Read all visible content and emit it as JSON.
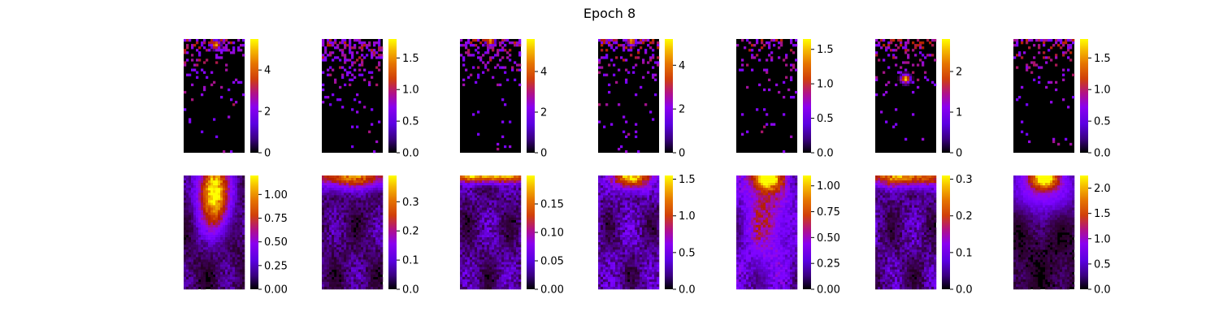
{
  "title": "Epoch 8",
  "colormap": "gnuplot",
  "chart_data": [
    {
      "type": "heatmap",
      "row": 1,
      "col": 1,
      "grid": "off",
      "cbar_range": [
        0,
        5.5
      ],
      "cbar_ticks": [
        {
          "v": 0,
          "t": "0"
        },
        {
          "v": 2,
          "t": "2"
        },
        {
          "v": 4,
          "t": "4"
        }
      ],
      "pattern": "sparse",
      "seed": 11,
      "hotspots": [
        {
          "x": 0.53,
          "y": 0.05,
          "s": 0.9
        }
      ],
      "density": 0.45
    },
    {
      "type": "heatmap",
      "row": 1,
      "col": 2,
      "grid": "off",
      "cbar_range": [
        0,
        1.8
      ],
      "cbar_ticks": [
        {
          "v": 0,
          "t": "0.0"
        },
        {
          "v": 0.5,
          "t": "0.5"
        },
        {
          "v": 1,
          "t": "1.0"
        },
        {
          "v": 1.5,
          "t": "1.5"
        }
      ],
      "pattern": "sparse",
      "seed": 23,
      "hotspots": [],
      "density": 0.7
    },
    {
      "type": "heatmap",
      "row": 1,
      "col": 3,
      "grid": "off",
      "cbar_range": [
        0,
        5.6
      ],
      "cbar_ticks": [
        {
          "v": 0,
          "t": "0"
        },
        {
          "v": 2,
          "t": "2"
        },
        {
          "v": 4,
          "t": "4"
        }
      ],
      "pattern": "sparse",
      "seed": 37,
      "hotspots": [
        {
          "x": 0.5,
          "y": 0.02,
          "s": 0.9
        }
      ],
      "density": 0.5
    },
    {
      "type": "heatmap",
      "row": 1,
      "col": 4,
      "grid": "off",
      "cbar_range": [
        0,
        5.2
      ],
      "cbar_ticks": [
        {
          "v": 0,
          "t": "0"
        },
        {
          "v": 2,
          "t": "2"
        },
        {
          "v": 4,
          "t": "4"
        }
      ],
      "pattern": "sparse",
      "seed": 41,
      "hotspots": [
        {
          "x": 0.55,
          "y": 0.02,
          "s": 0.9
        }
      ],
      "density": 0.5
    },
    {
      "type": "heatmap",
      "row": 1,
      "col": 5,
      "grid": "off",
      "cbar_range": [
        0,
        1.65
      ],
      "cbar_ticks": [
        {
          "v": 0,
          "t": "0.0"
        },
        {
          "v": 0.5,
          "t": "0.5"
        },
        {
          "v": 1,
          "t": "1.0"
        },
        {
          "v": 1.5,
          "t": "1.5"
        }
      ],
      "pattern": "sparse",
      "seed": 53,
      "hotspots": [],
      "density": 0.25
    },
    {
      "type": "heatmap",
      "row": 1,
      "col": 6,
      "grid": "off",
      "cbar_range": [
        0,
        2.8
      ],
      "cbar_ticks": [
        {
          "v": 0,
          "t": "0"
        },
        {
          "v": 1,
          "t": "1"
        },
        {
          "v": 2,
          "t": "2"
        }
      ],
      "pattern": "sparse",
      "seed": 67,
      "hotspots": [
        {
          "x": 0.5,
          "y": 0.35,
          "s": 1.0
        }
      ],
      "density": 0.45
    },
    {
      "type": "heatmap",
      "row": 1,
      "col": 7,
      "grid": "off",
      "cbar_range": [
        0,
        1.8
      ],
      "cbar_ticks": [
        {
          "v": 0,
          "t": "0.0"
        },
        {
          "v": 0.5,
          "t": "0.5"
        },
        {
          "v": 1,
          "t": "1.0"
        },
        {
          "v": 1.5,
          "t": "1.5"
        }
      ],
      "pattern": "sparse",
      "seed": 79,
      "hotspots": [],
      "density": 0.45
    },
    {
      "type": "heatmap",
      "row": 2,
      "col": 1,
      "grid": "off",
      "cbar_range": [
        0,
        1.2
      ],
      "cbar_ticks": [
        {
          "v": 0,
          "t": "0.00"
        },
        {
          "v": 0.25,
          "t": "0.25"
        },
        {
          "v": 0.5,
          "t": "0.50"
        },
        {
          "v": 0.75,
          "t": "0.75"
        },
        {
          "v": 1,
          "t": "1.00"
        }
      ],
      "pattern": "smooth",
      "seed": 83,
      "hotspots": [
        {
          "x": 0.5,
          "y": 0.15,
          "sx": 0.16,
          "sy": 0.2,
          "s": 1.0
        }
      ],
      "bg": 0.1
    },
    {
      "type": "heatmap",
      "row": 2,
      "col": 2,
      "grid": "off",
      "cbar_range": [
        0,
        0.39
      ],
      "cbar_ticks": [
        {
          "v": 0,
          "t": "0.0"
        },
        {
          "v": 0.1,
          "t": "0.1"
        },
        {
          "v": 0.2,
          "t": "0.2"
        },
        {
          "v": 0.3,
          "t": "0.3"
        }
      ],
      "pattern": "smooth",
      "seed": 97,
      "hotspots": [
        {
          "x": 0.5,
          "y": 0.0,
          "sx": 0.45,
          "sy": 0.07,
          "s": 0.7
        }
      ],
      "bg": 0.12
    },
    {
      "type": "heatmap",
      "row": 2,
      "col": 3,
      "grid": "off",
      "cbar_range": [
        0,
        0.2
      ],
      "cbar_ticks": [
        {
          "v": 0,
          "t": "0.00"
        },
        {
          "v": 0.05,
          "t": "0.05"
        },
        {
          "v": 0.1,
          "t": "0.10"
        },
        {
          "v": 0.15,
          "t": "0.15"
        }
      ],
      "pattern": "smooth",
      "seed": 101,
      "hotspots": [
        {
          "x": 0.5,
          "y": 0.0,
          "sx": 0.6,
          "sy": 0.04,
          "s": 0.85
        }
      ],
      "bg": 0.15
    },
    {
      "type": "heatmap",
      "row": 2,
      "col": 4,
      "grid": "off",
      "cbar_range": [
        0,
        1.55
      ],
      "cbar_ticks": [
        {
          "v": 0,
          "t": "0.0"
        },
        {
          "v": 0.5,
          "t": "0.5"
        },
        {
          "v": 1,
          "t": "1.0"
        },
        {
          "v": 1.5,
          "t": "1.5"
        }
      ],
      "pattern": "smooth",
      "seed": 113,
      "hotspots": [
        {
          "x": 0.55,
          "y": 0.0,
          "sx": 0.18,
          "sy": 0.07,
          "s": 1.0
        }
      ],
      "bg": 0.18
    },
    {
      "type": "heatmap",
      "row": 2,
      "col": 5,
      "grid": "off",
      "cbar_range": [
        0,
        1.1
      ],
      "cbar_ticks": [
        {
          "v": 0,
          "t": "0.00"
        },
        {
          "v": 0.25,
          "t": "0.25"
        },
        {
          "v": 0.5,
          "t": "0.50"
        },
        {
          "v": 0.75,
          "t": "0.75"
        },
        {
          "v": 1,
          "t": "1.00"
        }
      ],
      "pattern": "smooth",
      "seed": 127,
      "hotspots": [
        {
          "x": 0.5,
          "y": 0.02,
          "sx": 0.15,
          "sy": 0.07,
          "s": 1.0
        },
        {
          "x": 0.5,
          "y": 0.3,
          "sx": 0.25,
          "sy": 0.35,
          "s": 0.3
        }
      ],
      "bg": 0.2
    },
    {
      "type": "heatmap",
      "row": 2,
      "col": 6,
      "grid": "off",
      "cbar_range": [
        0,
        0.31
      ],
      "cbar_ticks": [
        {
          "v": 0,
          "t": "0.0"
        },
        {
          "v": 0.1,
          "t": "0.1"
        },
        {
          "v": 0.2,
          "t": "0.2"
        },
        {
          "v": 0.3,
          "t": "0.3"
        }
      ],
      "pattern": "smooth",
      "seed": 131,
      "hotspots": [
        {
          "x": 0.5,
          "y": 0.0,
          "sx": 0.5,
          "sy": 0.06,
          "s": 0.75
        }
      ],
      "bg": 0.15
    },
    {
      "type": "heatmap",
      "row": 2,
      "col": 7,
      "grid": "off",
      "cbar_range": [
        0,
        2.25
      ],
      "cbar_ticks": [
        {
          "v": 0,
          "t": "0.0"
        },
        {
          "v": 0.5,
          "t": "0.5"
        },
        {
          "v": 1,
          "t": "1.0"
        },
        {
          "v": 1.5,
          "t": "1.5"
        },
        {
          "v": 2,
          "t": "2.0"
        }
      ],
      "pattern": "smooth",
      "seed": 139,
      "hotspots": [
        {
          "x": 0.5,
          "y": 0.02,
          "sx": 0.14,
          "sy": 0.06,
          "s": 1.0
        },
        {
          "x": 0.5,
          "y": 0.1,
          "sx": 0.35,
          "sy": 0.15,
          "s": 0.3
        }
      ],
      "bg": 0.06
    }
  ]
}
